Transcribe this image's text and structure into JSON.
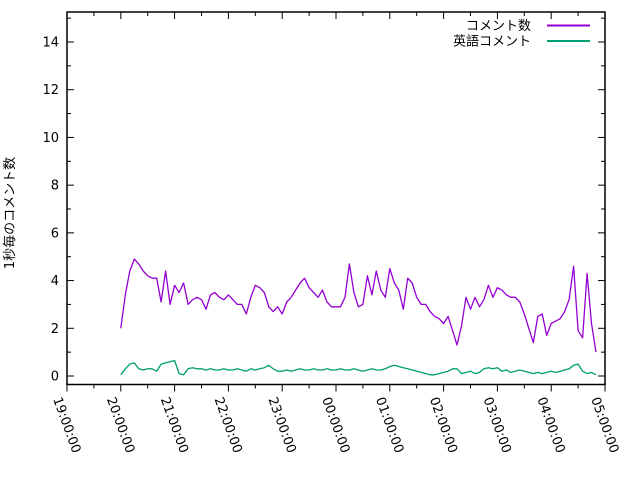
{
  "chart_data": {
    "type": "line",
    "title": "",
    "xlabel": "",
    "ylabel": "1秒毎のコメント数",
    "grid": false,
    "legend_position": "top-right-inside",
    "ylim": [
      0,
      15
    ],
    "yticks": [
      0,
      2,
      4,
      6,
      8,
      10,
      12,
      14
    ],
    "xtick_labels": [
      "19:00:00",
      "20:00:00",
      "21:00:00",
      "22:00:00",
      "23:00:00",
      "00:00:00",
      "01:00:00",
      "02:00:00",
      "03:00:00",
      "04:00:00",
      "05:00:00"
    ],
    "x": [
      "20:00:00",
      "20:05:00",
      "20:10:00",
      "20:15:00",
      "20:20:00",
      "20:25:00",
      "20:30:00",
      "20:35:00",
      "20:40:00",
      "20:45:00",
      "20:50:00",
      "20:55:00",
      "21:00:00",
      "21:05:00",
      "21:10:00",
      "21:15:00",
      "21:20:00",
      "21:25:00",
      "21:30:00",
      "21:35:00",
      "21:40:00",
      "21:45:00",
      "21:50:00",
      "21:55:00",
      "22:00:00",
      "22:05:00",
      "22:10:00",
      "22:15:00",
      "22:20:00",
      "22:25:00",
      "22:30:00",
      "22:35:00",
      "22:40:00",
      "22:45:00",
      "22:50:00",
      "22:55:00",
      "23:00:00",
      "23:05:00",
      "23:10:00",
      "23:15:00",
      "23:20:00",
      "23:25:00",
      "23:30:00",
      "23:35:00",
      "23:40:00",
      "23:45:00",
      "23:50:00",
      "23:55:00",
      "00:00:00",
      "00:05:00",
      "00:10:00",
      "00:15:00",
      "00:20:00",
      "00:25:00",
      "00:30:00",
      "00:35:00",
      "00:40:00",
      "00:45:00",
      "00:50:00",
      "00:55:00",
      "01:00:00",
      "01:05:00",
      "01:10:00",
      "01:15:00",
      "01:20:00",
      "01:25:00",
      "01:30:00",
      "01:35:00",
      "01:40:00",
      "01:45:00",
      "01:50:00",
      "01:55:00",
      "02:00:00",
      "02:05:00",
      "02:10:00",
      "02:15:00",
      "02:20:00",
      "02:25:00",
      "02:30:00",
      "02:35:00",
      "02:40:00",
      "02:45:00",
      "02:50:00",
      "02:55:00",
      "03:00:00",
      "03:05:00",
      "03:10:00",
      "03:15:00",
      "03:20:00",
      "03:25:00",
      "03:30:00",
      "03:35:00",
      "03:40:00",
      "03:45:00",
      "03:50:00",
      "03:55:00",
      "04:00:00",
      "04:05:00",
      "04:10:00",
      "04:15:00",
      "04:20:00",
      "04:25:00",
      "04:30:00",
      "04:35:00",
      "04:40:00",
      "04:45:00",
      "04:50:00"
    ],
    "series": [
      {
        "name": "コメント数",
        "color": "#9400d3",
        "values": [
          2.0,
          3.4,
          4.4,
          4.9,
          4.7,
          4.4,
          4.2,
          4.1,
          4.1,
          3.1,
          4.4,
          3.0,
          3.8,
          3.5,
          3.9,
          3.0,
          3.2,
          3.3,
          3.2,
          2.8,
          3.4,
          3.5,
          3.3,
          3.2,
          3.4,
          3.2,
          3.0,
          3.0,
          2.6,
          3.3,
          3.8,
          3.7,
          3.5,
          2.9,
          2.7,
          2.9,
          2.6,
          3.1,
          3.3,
          3.6,
          3.9,
          4.1,
          3.7,
          3.5,
          3.3,
          3.6,
          3.1,
          2.9,
          2.9,
          2.9,
          3.3,
          4.7,
          3.5,
          2.9,
          3.0,
          4.2,
          3.4,
          4.4,
          3.6,
          3.3,
          4.5,
          3.9,
          3.6,
          2.8,
          4.1,
          3.9,
          3.3,
          3.0,
          3.0,
          2.7,
          2.5,
          2.4,
          2.2,
          2.5,
          1.9,
          1.3,
          2.1,
          3.3,
          2.8,
          3.3,
          2.9,
          3.2,
          3.8,
          3.3,
          3.7,
          3.6,
          3.4,
          3.3,
          3.3,
          3.1,
          2.6,
          2.0,
          1.4,
          2.5,
          2.6,
          1.7,
          2.2,
          2.3,
          2.4,
          2.7,
          3.2,
          4.6,
          1.9,
          1.6,
          4.3,
          2.2,
          1.0
        ]
      },
      {
        "name": "英語コメント",
        "color": "#009e73",
        "values": [
          0.05,
          0.3,
          0.5,
          0.55,
          0.3,
          0.25,
          0.3,
          0.3,
          0.2,
          0.5,
          0.55,
          0.6,
          0.65,
          0.1,
          0.05,
          0.3,
          0.35,
          0.3,
          0.3,
          0.25,
          0.3,
          0.25,
          0.25,
          0.3,
          0.25,
          0.25,
          0.3,
          0.25,
          0.2,
          0.3,
          0.25,
          0.3,
          0.35,
          0.45,
          0.3,
          0.2,
          0.2,
          0.25,
          0.2,
          0.25,
          0.3,
          0.25,
          0.25,
          0.3,
          0.25,
          0.25,
          0.3,
          0.25,
          0.25,
          0.3,
          0.25,
          0.25,
          0.3,
          0.25,
          0.2,
          0.25,
          0.3,
          0.25,
          0.25,
          0.3,
          0.4,
          0.45,
          0.4,
          0.35,
          0.3,
          0.25,
          0.2,
          0.15,
          0.1,
          0.05,
          0.05,
          0.1,
          0.15,
          0.2,
          0.3,
          0.3,
          0.1,
          0.15,
          0.2,
          0.1,
          0.15,
          0.3,
          0.35,
          0.3,
          0.35,
          0.2,
          0.25,
          0.15,
          0.2,
          0.25,
          0.2,
          0.15,
          0.1,
          0.15,
          0.1,
          0.15,
          0.2,
          0.15,
          0.2,
          0.25,
          0.3,
          0.45,
          0.5,
          0.2,
          0.1,
          0.15,
          0.05
        ]
      }
    ],
    "colors": {
      "axis": "#000000",
      "background": "#ffffff"
    }
  }
}
